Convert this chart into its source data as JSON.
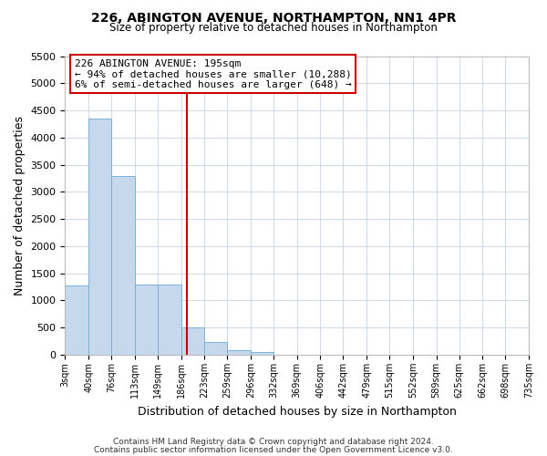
{
  "title": "226, ABINGTON AVENUE, NORTHAMPTON, NN1 4PR",
  "subtitle": "Size of property relative to detached houses in Northampton",
  "xlabel": "Distribution of detached houses by size in Northampton",
  "ylabel": "Number of detached properties",
  "bar_edges": [
    3,
    40,
    76,
    113,
    149,
    186,
    223,
    259,
    296,
    332,
    369,
    406,
    442,
    479,
    515,
    552,
    589,
    625,
    662,
    698,
    735
  ],
  "bar_heights": [
    1270,
    4350,
    3300,
    1300,
    1300,
    500,
    240,
    90,
    50,
    0,
    0,
    0,
    0,
    0,
    0,
    0,
    0,
    0,
    0,
    0
  ],
  "property_line_x": 195,
  "bar_color": "#c5d8ec",
  "bar_edge_color": "#7ab0d4",
  "line_color": "#cc0000",
  "ylim": [
    0,
    5500
  ],
  "yticks": [
    0,
    500,
    1000,
    1500,
    2000,
    2500,
    3000,
    3500,
    4000,
    4500,
    5000,
    5500
  ],
  "annotation_title": "226 ABINGTON AVENUE: 195sqm",
  "annotation_line1": "← 94% of detached houses are smaller (10,288)",
  "annotation_line2": "6% of semi-detached houses are larger (648) →",
  "footer1": "Contains HM Land Registry data © Crown copyright and database right 2024.",
  "footer2": "Contains public sector information licensed under the Open Government Licence v3.0.",
  "background_color": "#ffffff",
  "grid_color": "#cdd8ea"
}
